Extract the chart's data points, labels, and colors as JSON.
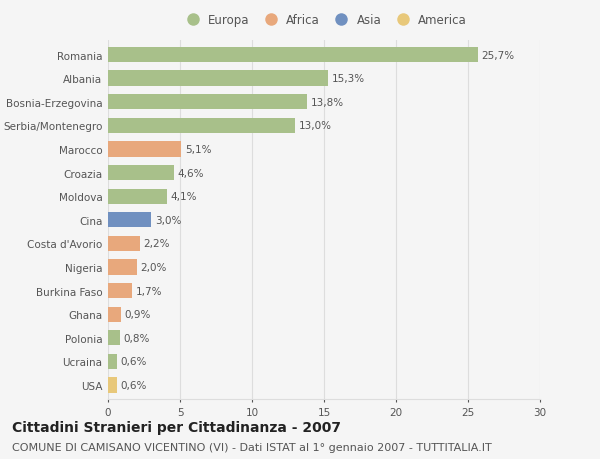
{
  "countries": [
    "Romania",
    "Albania",
    "Bosnia-Erzegovina",
    "Serbia/Montenegro",
    "Marocco",
    "Croazia",
    "Moldova",
    "Cina",
    "Costa d'Avorio",
    "Nigeria",
    "Burkina Faso",
    "Ghana",
    "Polonia",
    "Ucraina",
    "USA"
  ],
  "values": [
    25.7,
    15.3,
    13.8,
    13.0,
    5.1,
    4.6,
    4.1,
    3.0,
    2.2,
    2.0,
    1.7,
    0.9,
    0.8,
    0.6,
    0.6
  ],
  "labels": [
    "25,7%",
    "15,3%",
    "13,8%",
    "13,0%",
    "5,1%",
    "4,6%",
    "4,1%",
    "3,0%",
    "2,2%",
    "2,0%",
    "1,7%",
    "0,9%",
    "0,8%",
    "0,6%",
    "0,6%"
  ],
  "continents": [
    "Europa",
    "Europa",
    "Europa",
    "Europa",
    "Africa",
    "Europa",
    "Europa",
    "Asia",
    "Africa",
    "Africa",
    "Africa",
    "Africa",
    "Europa",
    "Europa",
    "America"
  ],
  "continent_colors": {
    "Europa": "#a8c08a",
    "Africa": "#e8a87c",
    "Asia": "#7090c0",
    "America": "#e8c87a"
  },
  "legend_order": [
    "Europa",
    "Africa",
    "Asia",
    "America"
  ],
  "title": "Cittadini Stranieri per Cittadinanza - 2007",
  "subtitle": "COMUNE DI CAMISANO VICENTINO (VI) - Dati ISTAT al 1° gennaio 2007 - TUTTITALIA.IT",
  "xlim": [
    0,
    30
  ],
  "xticks": [
    0,
    5,
    10,
    15,
    20,
    25,
    30
  ],
  "background_color": "#f5f5f5",
  "grid_color": "#dddddd",
  "bar_height": 0.65,
  "title_fontsize": 10,
  "subtitle_fontsize": 8,
  "label_fontsize": 7.5,
  "tick_fontsize": 7.5,
  "legend_fontsize": 8.5,
  "text_color": "#555555"
}
